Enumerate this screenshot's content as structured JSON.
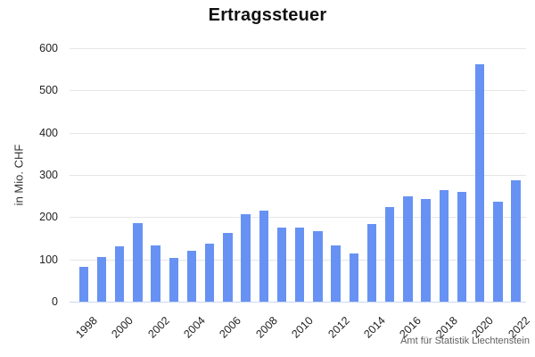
{
  "title": "Ertragssteuer",
  "source": "Amt für Statistik Liechtenstein",
  "colors": {
    "bar": "#6792F3",
    "grid": "#e6e6e6",
    "baseline": "#cdd7f5",
    "title_text": "#111111",
    "axis_text": "#222222",
    "source_text": "#5f5f5f"
  },
  "chart_data": {
    "type": "bar",
    "title": "Ertragssteuer",
    "xlabel": "",
    "ylabel": "in Mio. CHF",
    "categories": [
      "1998",
      "1999",
      "2000",
      "2001",
      "2002",
      "2003",
      "2004",
      "2005",
      "2006",
      "2007",
      "2008",
      "2009",
      "2010",
      "2011",
      "2012",
      "2013",
      "2014",
      "2015",
      "2016",
      "2017",
      "2018",
      "2019",
      "2020",
      "2021",
      "2022"
    ],
    "values": [
      82,
      105,
      130,
      185,
      133,
      103,
      121,
      137,
      162,
      207,
      216,
      176,
      175,
      166,
      133,
      115,
      183,
      224,
      249,
      242,
      265,
      260,
      561,
      236,
      287
    ],
    "ylim": [
      0,
      600
    ],
    "yticks": [
      0,
      100,
      200,
      300,
      400,
      500,
      600
    ],
    "xtick_labels": [
      "1998",
      "2000",
      "2002",
      "2004",
      "2006",
      "2008",
      "2010",
      "2012",
      "2014",
      "2016",
      "2018",
      "2020",
      "2022"
    ],
    "grid": "horizontal",
    "legend": "none",
    "source": "Amt für Statistik Liechtenstein"
  }
}
